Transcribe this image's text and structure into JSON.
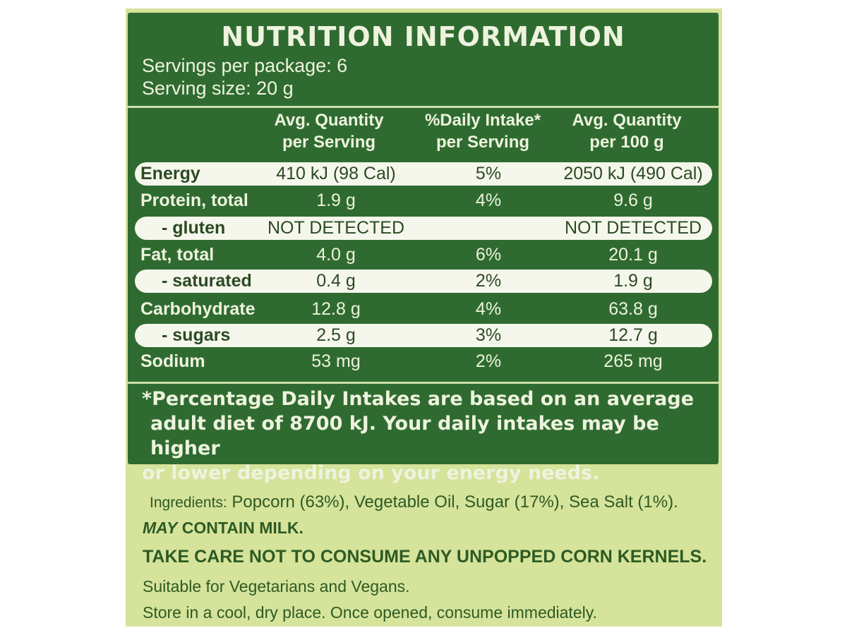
{
  "nutrition": {
    "title": "NUTRITION INFORMATION",
    "servings_per_package": "Servings per package: 6",
    "serving_size": "Serving size: 20 g",
    "columns": [
      "Avg. Quantity\nper Serving",
      "%Daily Intake*\nper Serving",
      "Avg. Quantity\nper 100 g"
    ],
    "rows": [
      {
        "name": "Energy",
        "per_serving": "410 kJ (98 Cal)",
        "daily_intake": "5%",
        "per_100g": "2050 kJ (490 Cal)"
      },
      {
        "name": "Protein, total",
        "per_serving": "1.9 g",
        "daily_intake": "4%",
        "per_100g": "9.6 g"
      },
      {
        "name": "- gluten",
        "per_serving": "NOT DETECTED",
        "daily_intake": "",
        "per_100g": "NOT DETECTED"
      },
      {
        "name": "Fat, total",
        "per_serving": "4.0 g",
        "daily_intake": "6%",
        "per_100g": "20.1 g"
      },
      {
        "name": "- saturated",
        "per_serving": "0.4 g",
        "daily_intake": "2%",
        "per_100g": "1.9 g"
      },
      {
        "name": "Carbohydrate",
        "per_serving": "12.8 g",
        "daily_intake": "4%",
        "per_100g": "63.8 g"
      },
      {
        "name": "- sugars",
        "per_serving": "2.5 g",
        "daily_intake": "3%",
        "per_100g": "12.7 g"
      },
      {
        "name": "Sodium",
        "per_serving": "53 mg",
        "daily_intake": "2%",
        "per_100g": "265 mg"
      }
    ],
    "footnote_line1": "*Percentage Daily Intakes are based on an average",
    "footnote_line2": "adult diet of 8700 kJ. Your daily intakes may be higher",
    "footnote_line3": "or lower depending on your energy needs."
  },
  "ingredients": {
    "label": "Ingredients:",
    "text": "Popcorn (63%), Vegetable Oil, Sugar (17%), Sea Salt (1%)."
  },
  "may_contain": {
    "may": "MAY",
    "rest": "CONTAIN MILK."
  },
  "warning": "TAKE CARE NOT TO CONSUME ANY UNPOPPED CORN KERNELS.",
  "suitable": "Suitable for Vegetarians and Vegans.",
  "storage": "Store in a cool, dry place. Once opened, consume immediately.",
  "colors": {
    "panel_green": "#2f6b30",
    "label_background": "#d5e39b",
    "band_white": "#f6f7ec",
    "text_dark_green": "#2e5a23"
  }
}
